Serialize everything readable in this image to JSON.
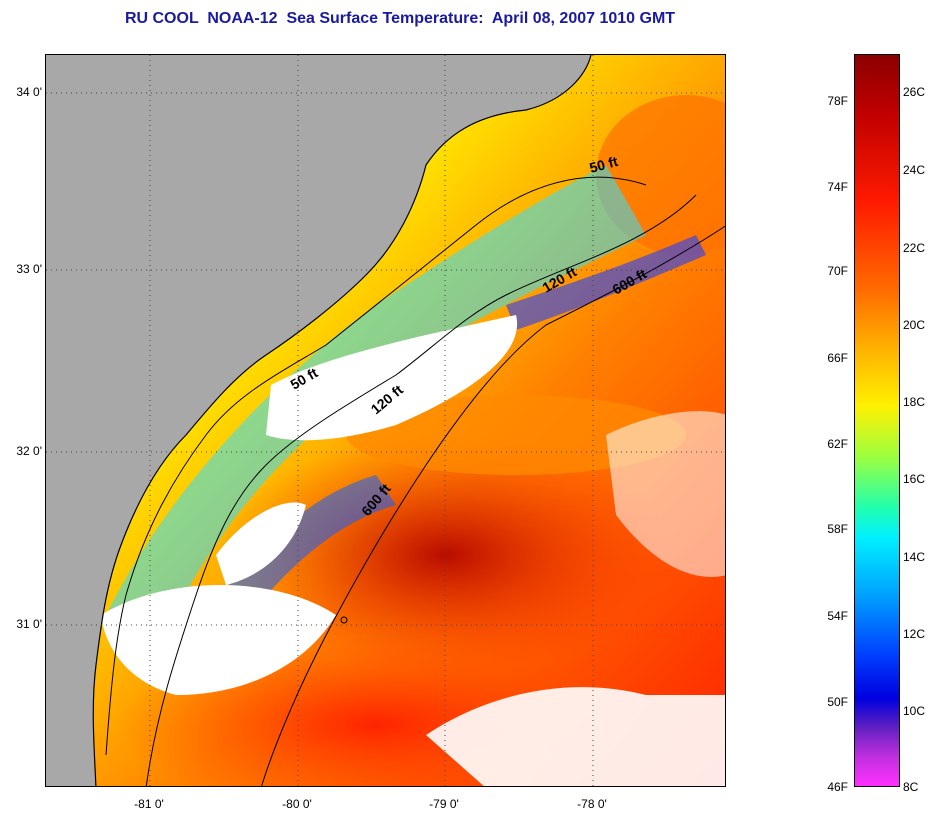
{
  "title": "RU COOL  NOAA-12  Sea Surface Temperature:  April 08, 2007 1010 GMT",
  "map": {
    "lat_labels": [
      "34 0'",
      "33 0'",
      "32 0'",
      "31 0'"
    ],
    "lon_labels": [
      "-81 0'",
      "-80 0'",
      "-79 0'",
      "-78 0'"
    ],
    "isobath_labels": [
      "50 ft",
      "120 ft",
      "600 ft",
      "50 ft",
      "120 ft",
      "600 ft"
    ],
    "colors": {
      "land": "#a8a8a8",
      "cloud": "#ffffff",
      "warm": "#ff2000",
      "cool": "#00c0ff"
    }
  },
  "colorbar": {
    "fahrenheit": [
      "78F",
      "74F",
      "70F",
      "66F",
      "62F",
      "58F",
      "54F",
      "50F",
      "46F"
    ],
    "celsius": [
      "26C",
      "24C",
      "22C",
      "20C",
      "18C",
      "16C",
      "14C",
      "12C",
      "10C",
      "8C"
    ]
  }
}
